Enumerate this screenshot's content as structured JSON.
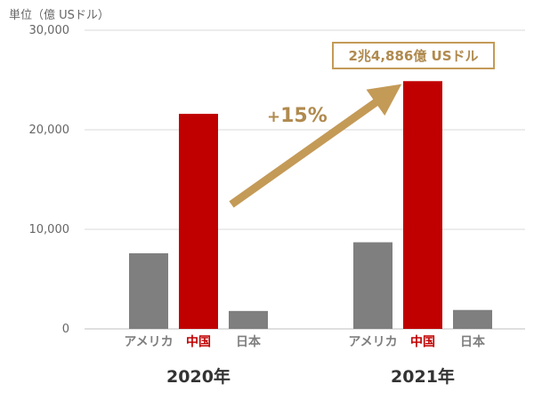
{
  "chart_data": {
    "type": "bar",
    "unit_label": "単位（億 USドル）",
    "groups": [
      "2020年",
      "2021年"
    ],
    "categories": [
      "アメリカ",
      "中国",
      "日本"
    ],
    "values": [
      [
        7600,
        21600,
        1800
      ],
      [
        8700,
        24886,
        1900
      ]
    ],
    "ylim": [
      0,
      30000
    ],
    "yticks": [
      "0",
      "10,000",
      "20,000",
      "30,000"
    ],
    "grid": true,
    "colors": {
      "default": "#7f7f7f",
      "highlight": "#c00000",
      "accent": "#c49a57"
    },
    "highlight_category": "中国"
  },
  "annotations": {
    "growth_plus": "+",
    "growth_value": "15%",
    "callout": "2兆4,886億 USドル"
  }
}
